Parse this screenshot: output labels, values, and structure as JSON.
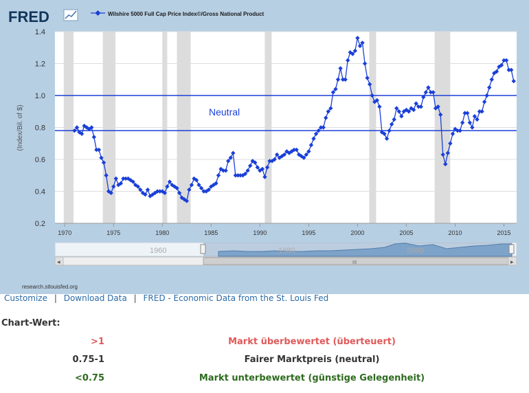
{
  "fred": {
    "logo": "FRED",
    "legend_label": "Wilshire 5000 Full Cap Price Index©/Gross National Product",
    "neutral_label": "Neutral",
    "source_text": "research.stlouisfed.org",
    "y_axis_label": "(Index/Bil. of $)",
    "navigator_labels": [
      "1960",
      "1980",
      "2000"
    ],
    "scroll_glyph": "III",
    "scroll_left": "◂",
    "scroll_right": "▸"
  },
  "links": {
    "customize": "Customize",
    "download": "Download Data",
    "fred_link": "FRED - Economic Data from the St. Louis Fed"
  },
  "chart_value": {
    "title": "Chart-Wert:",
    "rows": [
      {
        "range": ">1",
        "desc": "Markt überbewertet (überteuert)",
        "color": "#e05a5a"
      },
      {
        "range": "0.75-1",
        "desc": "Fairer Marktpreis (neutral)",
        "color": "#333333"
      },
      {
        "range": "<0.75",
        "desc": "Markt unterbewertet (günstige Gelegenheit)",
        "color": "#2e6b1f"
      }
    ]
  },
  "colors": {
    "frame_bg": "#b7cfe3",
    "plot_bg": "#ffffff",
    "series": "#1a3fd8",
    "recession": "#dcdcdc",
    "hline": "#1a3fd8"
  },
  "chart_data": {
    "type": "line",
    "title": "",
    "xlabel": "",
    "ylabel": "(Index/Bil. of $)",
    "xlim": [
      1969,
      2016.3
    ],
    "ylim": [
      0.2,
      1.4
    ],
    "x_ticks": [
      1970,
      1975,
      1980,
      1985,
      1990,
      1995,
      2000,
      2005,
      2010,
      2015
    ],
    "y_ticks": [
      0.2,
      0.4,
      0.6,
      0.8,
      1.0,
      1.2,
      1.4
    ],
    "y_tick_labels": [
      "0.2",
      "0.4",
      "0.6",
      "0.8",
      "1.0",
      "1.2",
      "1.4"
    ],
    "grid": "horizontal",
    "legend_position": "top",
    "reference_lines": [
      1.0,
      0.78
    ],
    "recessions": [
      [
        1969.9,
        1970.9
      ],
      [
        1973.9,
        1975.2
      ],
      [
        1980.0,
        1980.5
      ],
      [
        1981.5,
        1982.9
      ],
      [
        1990.5,
        1991.2
      ],
      [
        2001.2,
        2001.9
      ],
      [
        2007.9,
        2009.5
      ]
    ],
    "series": [
      {
        "name": "Wilshire 5000 Full Cap Price Index©/Gross National Product",
        "marker": "diamond",
        "points": [
          [
            1971.0,
            0.78
          ],
          [
            1971.25,
            0.8
          ],
          [
            1971.5,
            0.77
          ],
          [
            1971.75,
            0.76
          ],
          [
            1972.0,
            0.81
          ],
          [
            1972.25,
            0.8
          ],
          [
            1972.5,
            0.79
          ],
          [
            1972.75,
            0.8
          ],
          [
            1973.0,
            0.74
          ],
          [
            1973.25,
            0.66
          ],
          [
            1973.5,
            0.66
          ],
          [
            1973.75,
            0.61
          ],
          [
            1974.0,
            0.58
          ],
          [
            1974.25,
            0.5
          ],
          [
            1974.5,
            0.4
          ],
          [
            1974.75,
            0.39
          ],
          [
            1975.0,
            0.43
          ],
          [
            1975.25,
            0.48
          ],
          [
            1975.5,
            0.44
          ],
          [
            1975.75,
            0.45
          ],
          [
            1976.0,
            0.48
          ],
          [
            1976.25,
            0.48
          ],
          [
            1976.5,
            0.48
          ],
          [
            1976.75,
            0.47
          ],
          [
            1977.0,
            0.46
          ],
          [
            1977.25,
            0.44
          ],
          [
            1977.5,
            0.43
          ],
          [
            1977.75,
            0.41
          ],
          [
            1978.0,
            0.39
          ],
          [
            1978.25,
            0.38
          ],
          [
            1978.5,
            0.41
          ],
          [
            1978.75,
            0.37
          ],
          [
            1979.0,
            0.38
          ],
          [
            1979.25,
            0.39
          ],
          [
            1979.5,
            0.4
          ],
          [
            1979.75,
            0.4
          ],
          [
            1980.0,
            0.4
          ],
          [
            1980.25,
            0.39
          ],
          [
            1980.5,
            0.43
          ],
          [
            1980.75,
            0.46
          ],
          [
            1981.0,
            0.44
          ],
          [
            1981.25,
            0.43
          ],
          [
            1981.5,
            0.42
          ],
          [
            1981.75,
            0.39
          ],
          [
            1982.0,
            0.36
          ],
          [
            1982.25,
            0.35
          ],
          [
            1982.5,
            0.34
          ],
          [
            1982.75,
            0.41
          ],
          [
            1983.0,
            0.44
          ],
          [
            1983.25,
            0.48
          ],
          [
            1983.5,
            0.47
          ],
          [
            1983.75,
            0.44
          ],
          [
            1984.0,
            0.42
          ],
          [
            1984.25,
            0.4
          ],
          [
            1984.5,
            0.4
          ],
          [
            1984.75,
            0.41
          ],
          [
            1985.0,
            0.43
          ],
          [
            1985.25,
            0.44
          ],
          [
            1985.5,
            0.45
          ],
          [
            1985.75,
            0.5
          ],
          [
            1986.0,
            0.54
          ],
          [
            1986.25,
            0.53
          ],
          [
            1986.5,
            0.53
          ],
          [
            1986.75,
            0.59
          ],
          [
            1987.0,
            0.61
          ],
          [
            1987.25,
            0.64
          ],
          [
            1987.5,
            0.5
          ],
          [
            1987.75,
            0.5
          ],
          [
            1988.0,
            0.5
          ],
          [
            1988.25,
            0.5
          ],
          [
            1988.5,
            0.51
          ],
          [
            1988.75,
            0.53
          ],
          [
            1989.0,
            0.56
          ],
          [
            1989.25,
            0.59
          ],
          [
            1989.5,
            0.58
          ],
          [
            1989.75,
            0.55
          ],
          [
            1990.0,
            0.53
          ],
          [
            1990.25,
            0.54
          ],
          [
            1990.5,
            0.49
          ],
          [
            1990.75,
            0.55
          ],
          [
            1991.0,
            0.59
          ],
          [
            1991.25,
            0.59
          ],
          [
            1991.5,
            0.6
          ],
          [
            1991.75,
            0.63
          ],
          [
            1992.0,
            0.61
          ],
          [
            1992.25,
            0.62
          ],
          [
            1992.5,
            0.63
          ],
          [
            1992.75,
            0.65
          ],
          [
            1993.0,
            0.64
          ],
          [
            1993.25,
            0.65
          ],
          [
            1993.5,
            0.66
          ],
          [
            1993.75,
            0.66
          ],
          [
            1994.0,
            0.63
          ],
          [
            1994.25,
            0.62
          ],
          [
            1994.5,
            0.61
          ],
          [
            1994.75,
            0.63
          ],
          [
            1995.0,
            0.65
          ],
          [
            1995.25,
            0.69
          ],
          [
            1995.5,
            0.73
          ],
          [
            1995.75,
            0.76
          ],
          [
            1996.0,
            0.78
          ],
          [
            1996.25,
            0.8
          ],
          [
            1996.5,
            0.8
          ],
          [
            1996.75,
            0.86
          ],
          [
            1997.0,
            0.9
          ],
          [
            1997.25,
            0.92
          ],
          [
            1997.5,
            1.02
          ],
          [
            1997.75,
            1.04
          ],
          [
            1998.0,
            1.1
          ],
          [
            1998.25,
            1.17
          ],
          [
            1998.5,
            1.1
          ],
          [
            1998.75,
            1.1
          ],
          [
            1999.0,
            1.22
          ],
          [
            1999.25,
            1.27
          ],
          [
            1999.5,
            1.26
          ],
          [
            1999.75,
            1.28
          ],
          [
            2000.0,
            1.36
          ],
          [
            2000.25,
            1.31
          ],
          [
            2000.5,
            1.33
          ],
          [
            2000.75,
            1.2
          ],
          [
            2001.0,
            1.11
          ],
          [
            2001.25,
            1.07
          ],
          [
            2001.5,
            1.0
          ],
          [
            2001.75,
            0.96
          ],
          [
            2002.0,
            0.97
          ],
          [
            2002.25,
            0.93
          ],
          [
            2002.5,
            0.77
          ],
          [
            2002.75,
            0.76
          ],
          [
            2003.0,
            0.73
          ],
          [
            2003.25,
            0.78
          ],
          [
            2003.5,
            0.82
          ],
          [
            2003.75,
            0.85
          ],
          [
            2004.0,
            0.92
          ],
          [
            2004.25,
            0.9
          ],
          [
            2004.5,
            0.87
          ],
          [
            2004.75,
            0.9
          ],
          [
            2005.0,
            0.91
          ],
          [
            2005.25,
            0.9
          ],
          [
            2005.5,
            0.92
          ],
          [
            2005.75,
            0.91
          ],
          [
            2006.0,
            0.95
          ],
          [
            2006.25,
            0.93
          ],
          [
            2006.5,
            0.93
          ],
          [
            2006.75,
            0.99
          ],
          [
            2007.0,
            1.02
          ],
          [
            2007.25,
            1.05
          ],
          [
            2007.5,
            1.02
          ],
          [
            2007.75,
            1.02
          ],
          [
            2008.0,
            0.92
          ],
          [
            2008.25,
            0.93
          ],
          [
            2008.5,
            0.88
          ],
          [
            2008.75,
            0.63
          ],
          [
            2009.0,
            0.57
          ],
          [
            2009.25,
            0.64
          ],
          [
            2009.5,
            0.7
          ],
          [
            2009.75,
            0.76
          ],
          [
            2010.0,
            0.79
          ],
          [
            2010.25,
            0.78
          ],
          [
            2010.5,
            0.78
          ],
          [
            2010.75,
            0.83
          ],
          [
            2011.0,
            0.89
          ],
          [
            2011.25,
            0.89
          ],
          [
            2011.5,
            0.83
          ],
          [
            2011.75,
            0.8
          ],
          [
            2012.0,
            0.87
          ],
          [
            2012.25,
            0.85
          ],
          [
            2012.5,
            0.9
          ],
          [
            2012.75,
            0.9
          ],
          [
            2013.0,
            0.96
          ],
          [
            2013.25,
            1.0
          ],
          [
            2013.5,
            1.05
          ],
          [
            2013.75,
            1.1
          ],
          [
            2014.0,
            1.14
          ],
          [
            2014.25,
            1.15
          ],
          [
            2014.5,
            1.18
          ],
          [
            2014.75,
            1.19
          ],
          [
            2015.0,
            1.22
          ],
          [
            2015.25,
            1.22
          ],
          [
            2015.5,
            1.16
          ],
          [
            2015.75,
            1.16
          ],
          [
            2016.0,
            1.09
          ]
        ]
      }
    ]
  }
}
